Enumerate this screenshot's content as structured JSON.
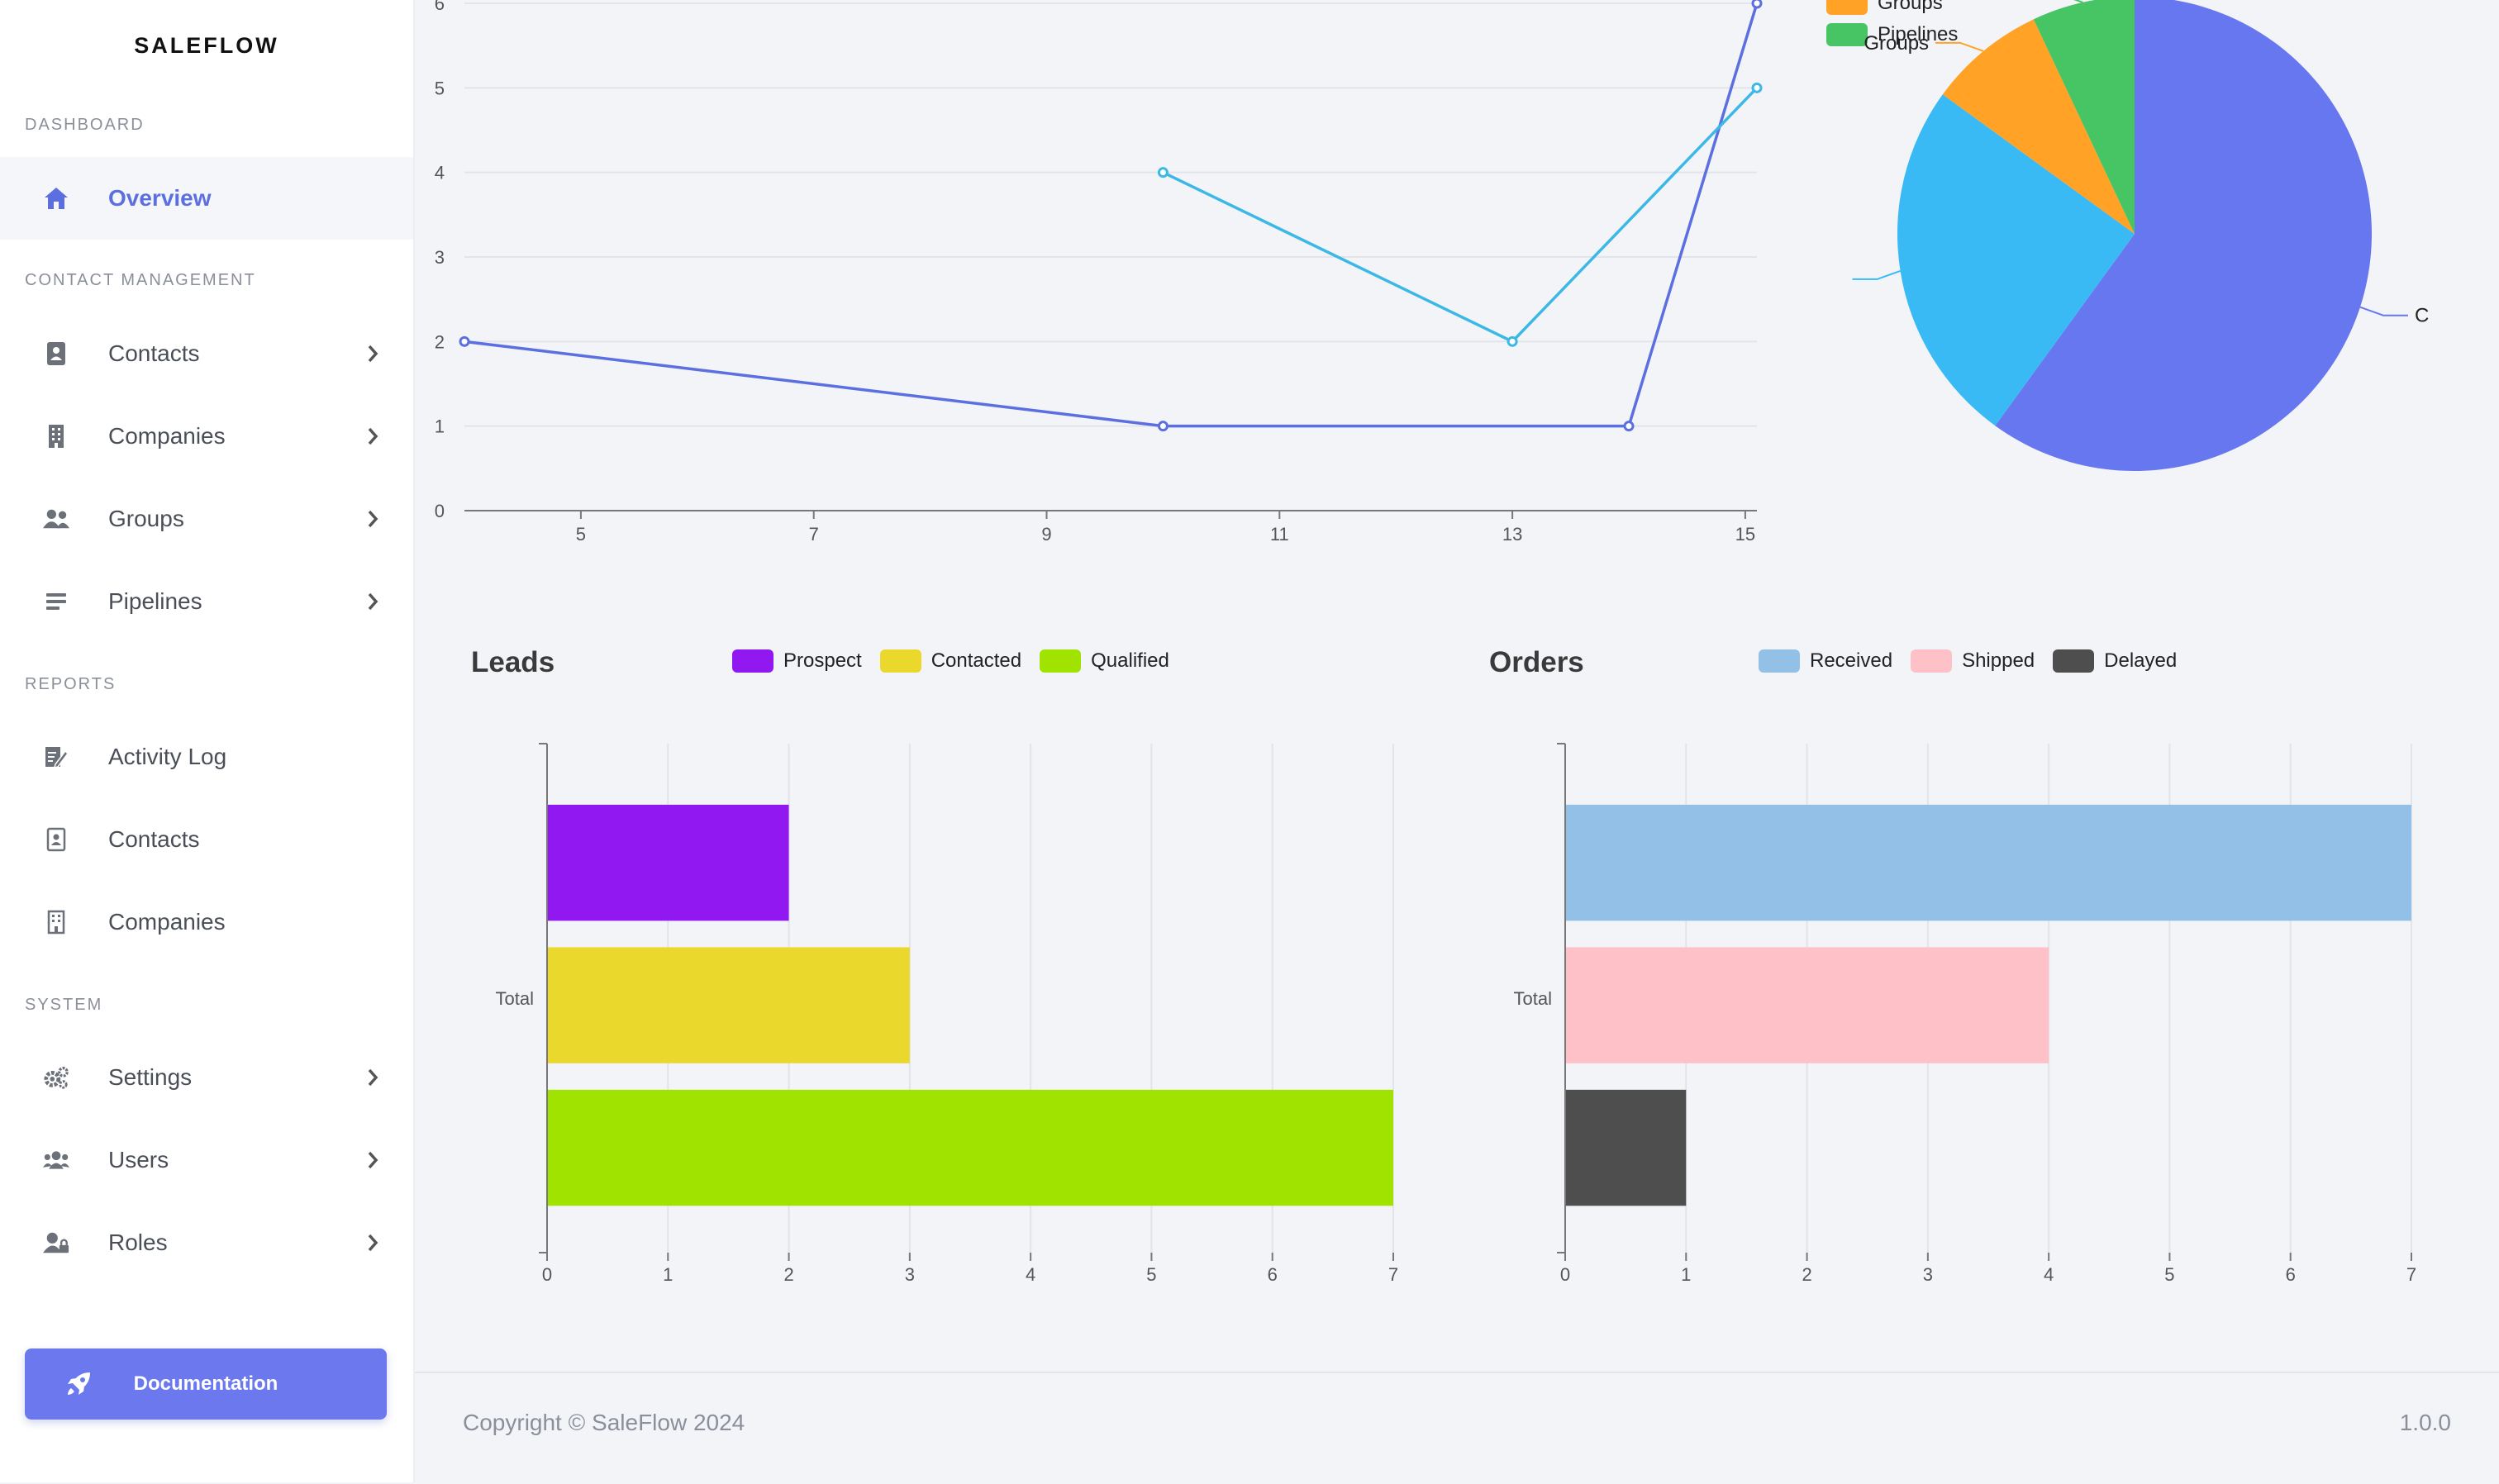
{
  "app": {
    "brand": "SALEFLOW"
  },
  "sidebar": {
    "sections": [
      {
        "label": "DASHBOARD"
      },
      {
        "label": "CONTACT MANAGEMENT"
      },
      {
        "label": "REPORTS"
      },
      {
        "label": "SYSTEM"
      }
    ],
    "items": [
      {
        "label": "Overview",
        "icon": "home-icon",
        "active": true
      },
      {
        "label": "Contacts",
        "icon": "address-book-icon"
      },
      {
        "label": "Companies",
        "icon": "building-icon"
      },
      {
        "label": "Groups",
        "icon": "users-icon"
      },
      {
        "label": "Pipelines",
        "icon": "bars-icon"
      },
      {
        "label": "Activity Log",
        "icon": "edit-file-icon"
      },
      {
        "label": "Contacts",
        "icon": "contact-card-icon"
      },
      {
        "label": "Companies",
        "icon": "building-outline-icon"
      },
      {
        "label": "Settings",
        "icon": "gears-icon"
      },
      {
        "label": "Users",
        "icon": "users-group-icon"
      },
      {
        "label": "Roles",
        "icon": "user-lock-icon"
      }
    ],
    "documentation_label": "Documentation"
  },
  "footer": {
    "copyright": "Copyright © SaleFlow 2024",
    "version": "1.0.0"
  },
  "colors": {
    "accent": "#6b78ee",
    "line_series_a": "#5b6fe0",
    "line_series_b": "#3cb8e6"
  },
  "chart_data": [
    {
      "type": "line",
      "series": [
        {
          "color": "#5b6fe0",
          "points": [
            [
              4,
              2
            ],
            [
              10,
              1
            ],
            [
              14,
              1
            ],
            [
              15.1,
              6
            ]
          ]
        },
        {
          "color": "#3cb8e6",
          "points": [
            [
              10,
              4
            ],
            [
              13,
              2
            ],
            [
              15.1,
              5
            ]
          ]
        }
      ],
      "xticks": [
        "5",
        "7",
        "9",
        "11",
        "13",
        "15"
      ],
      "yticks": [
        "0",
        "1",
        "2",
        "3",
        "4",
        "5",
        "6"
      ],
      "xlim": [
        4,
        15.1
      ],
      "ylim": [
        0,
        6
      ]
    },
    {
      "type": "pie",
      "legend": [
        {
          "label": "Groups",
          "color": "#ffa226"
        },
        {
          "label": "Pipelines",
          "color": "#47c463"
        }
      ],
      "slices": [
        {
          "label": "C",
          "value": 60,
          "color": "#6777ef"
        },
        {
          "label": "",
          "value": 25,
          "color": "#3abaf4"
        },
        {
          "label": "Groups",
          "value": 8,
          "color": "#ffa226"
        },
        {
          "label": "",
          "value": 7,
          "color": "#47c463"
        }
      ],
      "slice_labels": [
        "C",
        "Groups"
      ]
    },
    {
      "type": "bar",
      "orientation": "horizontal",
      "title": "Leads",
      "categories": [
        "Total"
      ],
      "series": [
        {
          "name": "Prospect",
          "values": [
            2
          ],
          "color": "#9118f0"
        },
        {
          "name": "Contacted",
          "values": [
            3
          ],
          "color": "#ebd82d"
        },
        {
          "name": "Qualified",
          "values": [
            7
          ],
          "color": "#a0e200"
        }
      ],
      "xticks": [
        "0",
        "1",
        "2",
        "3",
        "4",
        "5",
        "6",
        "7"
      ],
      "xlim": [
        0,
        7
      ]
    },
    {
      "type": "bar",
      "orientation": "horizontal",
      "title": "Orders",
      "categories": [
        "Total"
      ],
      "series": [
        {
          "name": "Received",
          "values": [
            7
          ],
          "color": "#93c0e6"
        },
        {
          "name": "Shipped",
          "values": [
            4
          ],
          "color": "#ffc1c8"
        },
        {
          "name": "Delayed",
          "values": [
            1
          ],
          "color": "#4e4e4e"
        }
      ],
      "xticks": [
        "0",
        "1",
        "2",
        "3",
        "4",
        "5",
        "6",
        "7"
      ],
      "xlim": [
        0,
        7
      ]
    }
  ]
}
